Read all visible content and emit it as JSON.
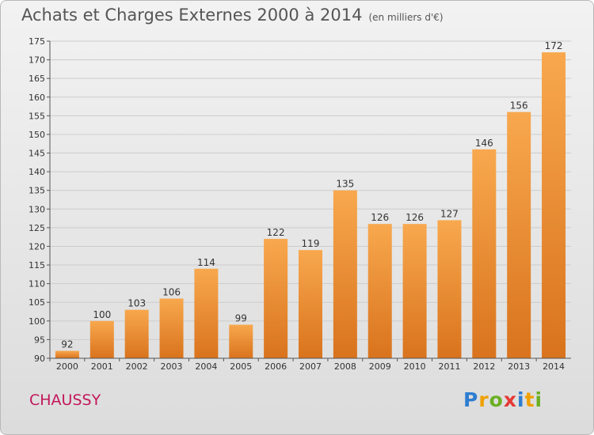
{
  "header": {
    "title": "Achats et Charges Externes 2000 à 2014",
    "unit": "(en milliers d'€)"
  },
  "footer": {
    "commune": "CHAUSSY",
    "logo": [
      "P",
      "r",
      "o",
      "x",
      "i",
      "t",
      "i"
    ],
    "logo_colors": [
      "#2e7dd1",
      "#f0a000",
      "#6ab023",
      "#e53935",
      "#2e7dd1",
      "#f0a000",
      "#6ab023"
    ]
  },
  "chart_data": {
    "type": "bar",
    "categories": [
      "2000",
      "2001",
      "2002",
      "2003",
      "2004",
      "2005",
      "2006",
      "2007",
      "2008",
      "2009",
      "2010",
      "2011",
      "2012",
      "2013",
      "2014"
    ],
    "values": [
      92,
      100,
      103,
      106,
      114,
      99,
      122,
      119,
      135,
      126,
      126,
      127,
      146,
      156,
      172
    ],
    "ylim": [
      90,
      175
    ],
    "yticks": [
      90,
      95,
      100,
      105,
      110,
      115,
      120,
      125,
      130,
      135,
      140,
      145,
      150,
      155,
      160,
      165,
      170,
      175
    ],
    "grid": true,
    "bar_color_light": "#f8a84e",
    "bar_color_dark": "#d9731d",
    "grid_color": "#cccccc"
  }
}
